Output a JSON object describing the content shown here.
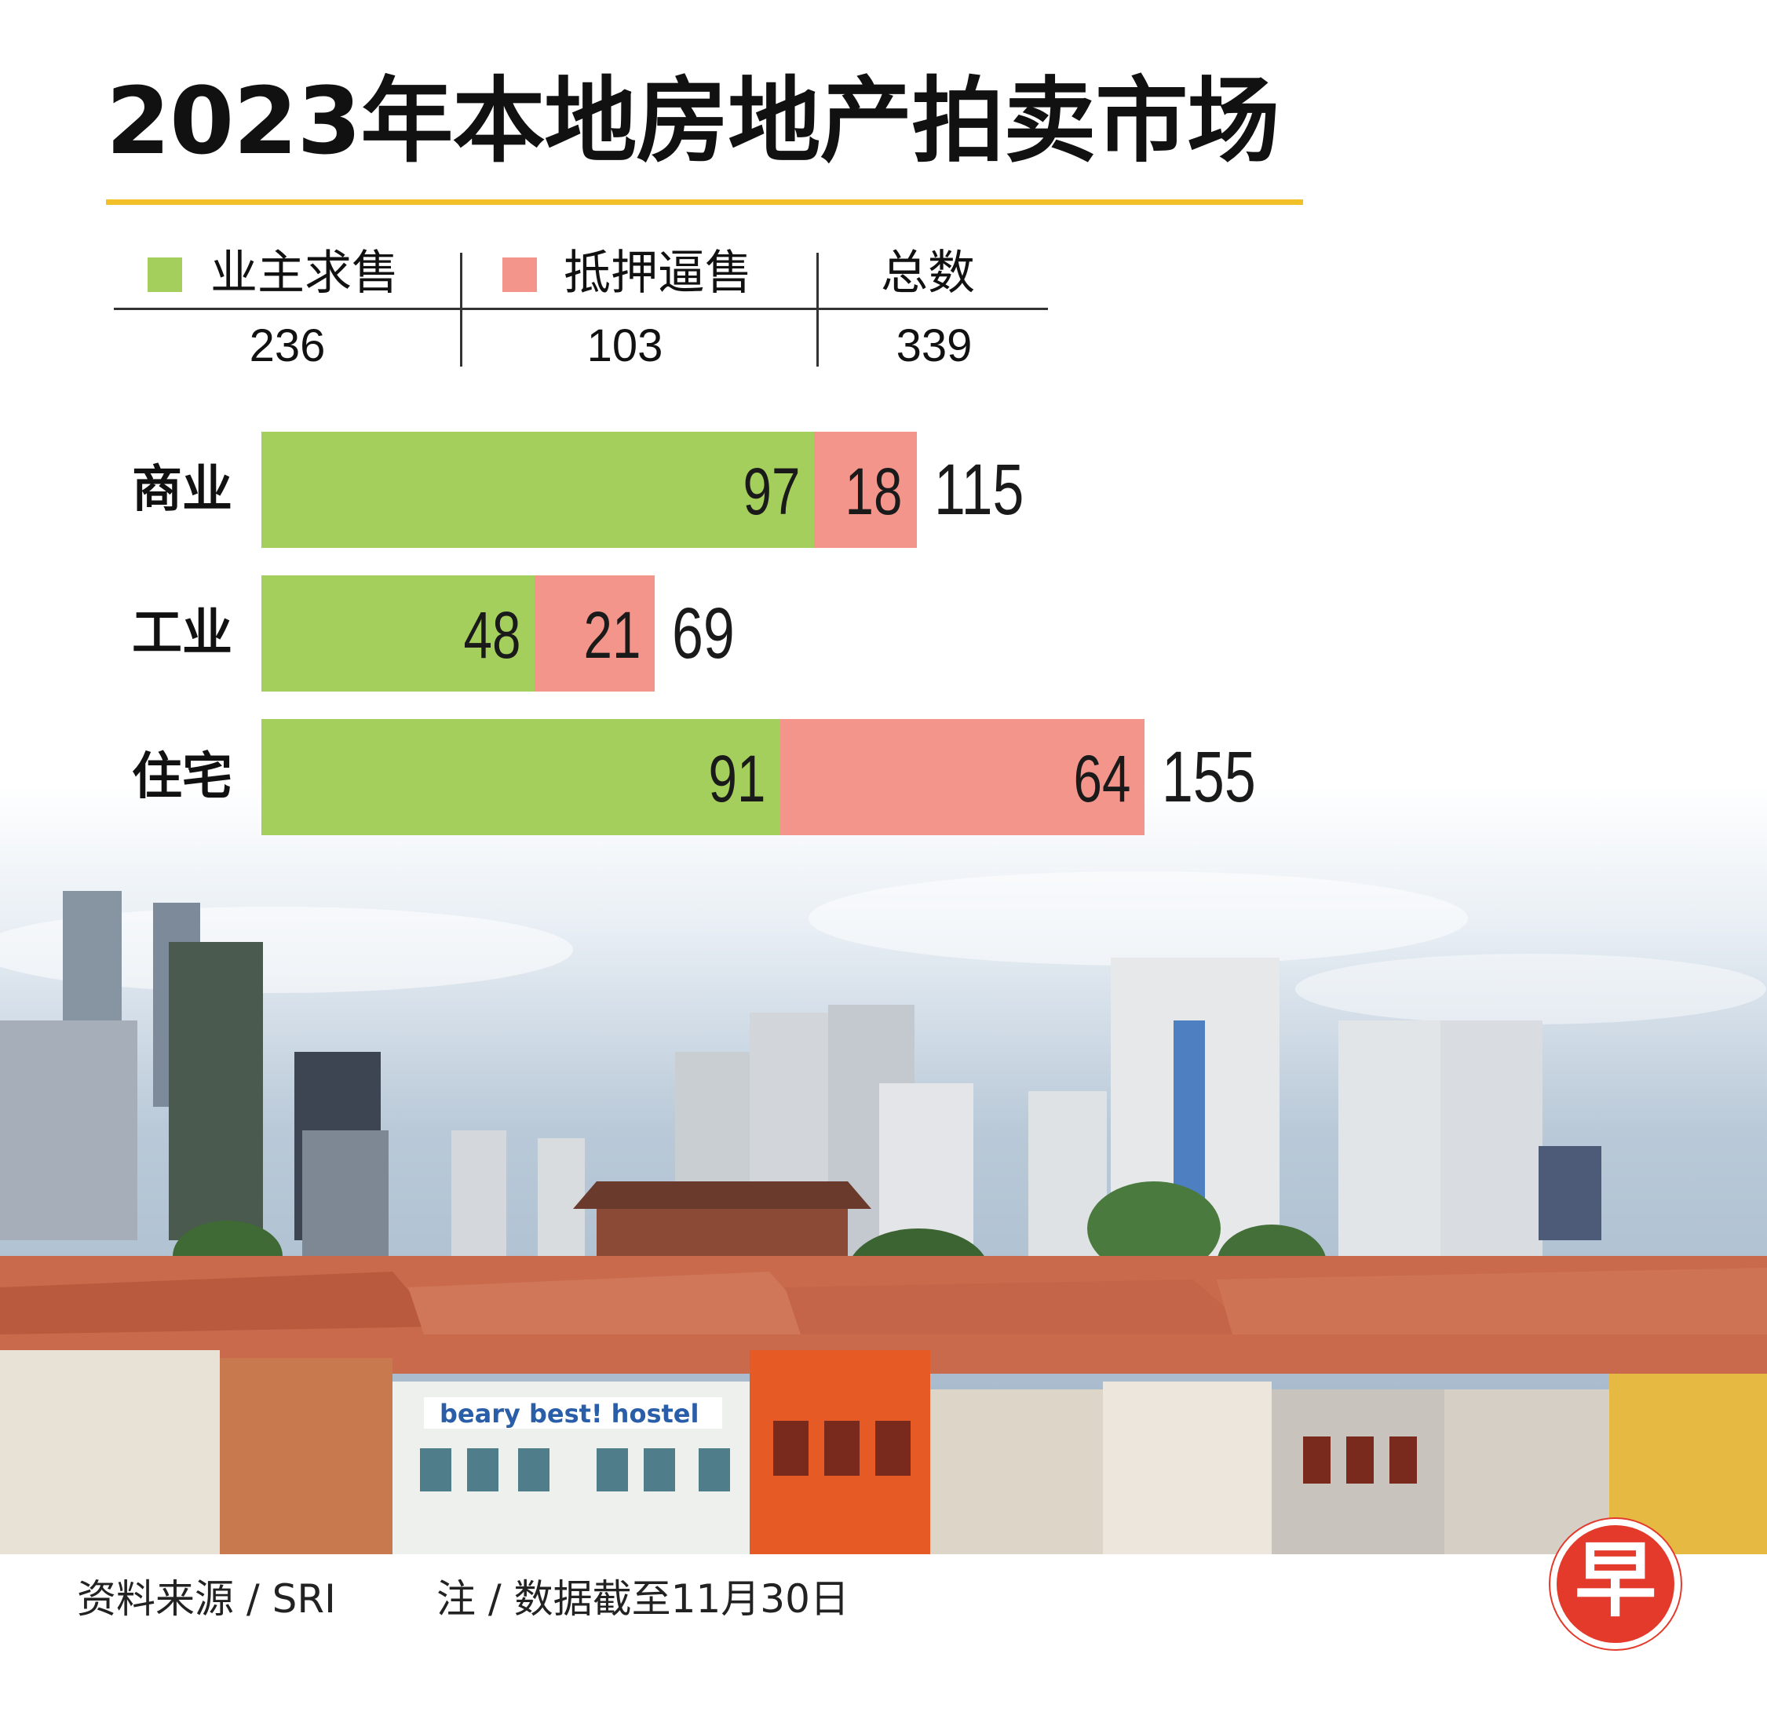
{
  "title": "2023年本地房地产拍卖市场",
  "summary": {
    "owner_label": "业主求售",
    "mortgagee_label": "抵押逼售",
    "total_label": "总数",
    "owner_value": "236",
    "mortgagee_value": "103",
    "total_value": "339"
  },
  "colors": {
    "owner": "#a5cf5c",
    "mortgagee": "#f3958b",
    "accent_underline": "#f2c029",
    "logo": "#e43a2c"
  },
  "chart_data": {
    "type": "bar",
    "orientation": "horizontal",
    "stacked": true,
    "categories": [
      "商业",
      "工业",
      "住宅"
    ],
    "series": [
      {
        "name": "业主求售",
        "values": [
          97,
          48,
          91
        ]
      },
      {
        "name": "抵押逼售",
        "values": [
          18,
          21,
          64
        ]
      }
    ],
    "totals": [
      115,
      69,
      155
    ],
    "legend_position": "top-left",
    "grid": false
  },
  "footer": {
    "source": "资料来源 / SRI",
    "note": "注 / 数据截至11月30日"
  },
  "logo_text": "早",
  "photo_sign": "beary best! hostel"
}
